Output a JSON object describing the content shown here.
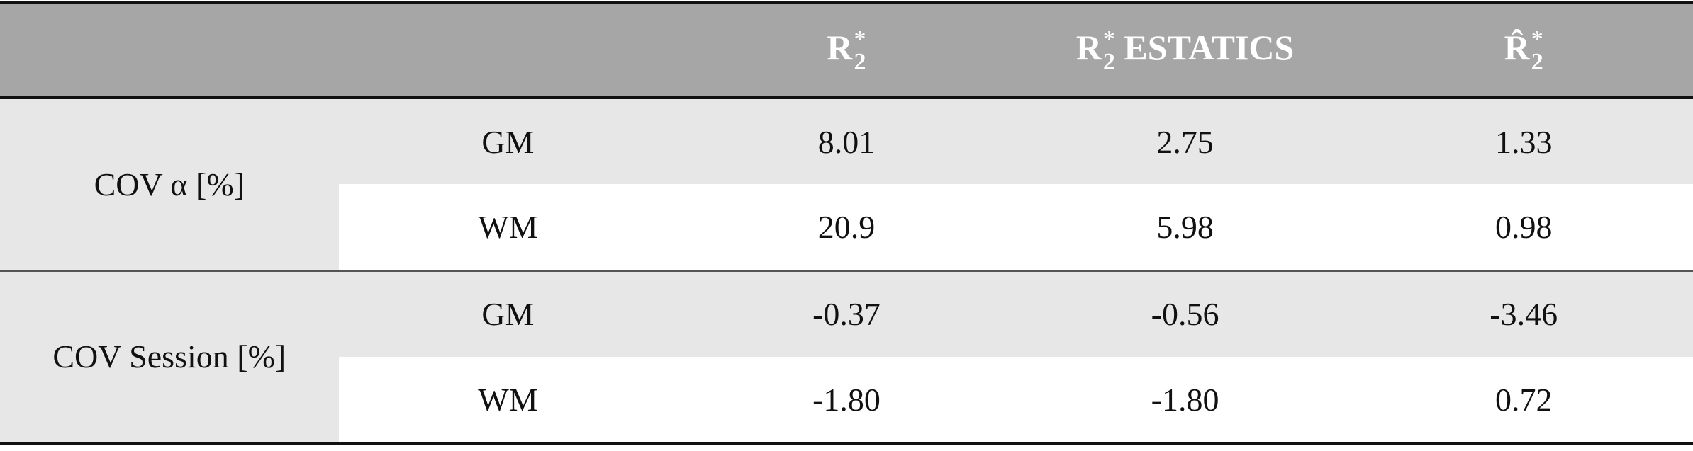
{
  "table": {
    "columns": [
      {
        "base": "R",
        "sup": "*",
        "sub": "2"
      },
      {
        "base": "R",
        "sup": "*",
        "sub": "2",
        "suffix": "ESTATICS"
      },
      {
        "base": "R̂",
        "sup": "*",
        "sub": "2"
      }
    ],
    "groups": [
      {
        "label": "COV α [%]",
        "rows": [
          {
            "tissue": "GM",
            "values": [
              "8.01",
              "2.75",
              "1.33"
            ]
          },
          {
            "tissue": "WM",
            "values": [
              "20.9",
              "5.98",
              "0.98"
            ]
          }
        ]
      },
      {
        "label": "COV Session [%]",
        "rows": [
          {
            "tissue": "GM",
            "values": [
              "-0.37",
              "-0.56",
              "-3.46"
            ]
          },
          {
            "tissue": "WM",
            "values": [
              "-1.80",
              "-1.80",
              "0.72"
            ]
          }
        ]
      }
    ]
  }
}
